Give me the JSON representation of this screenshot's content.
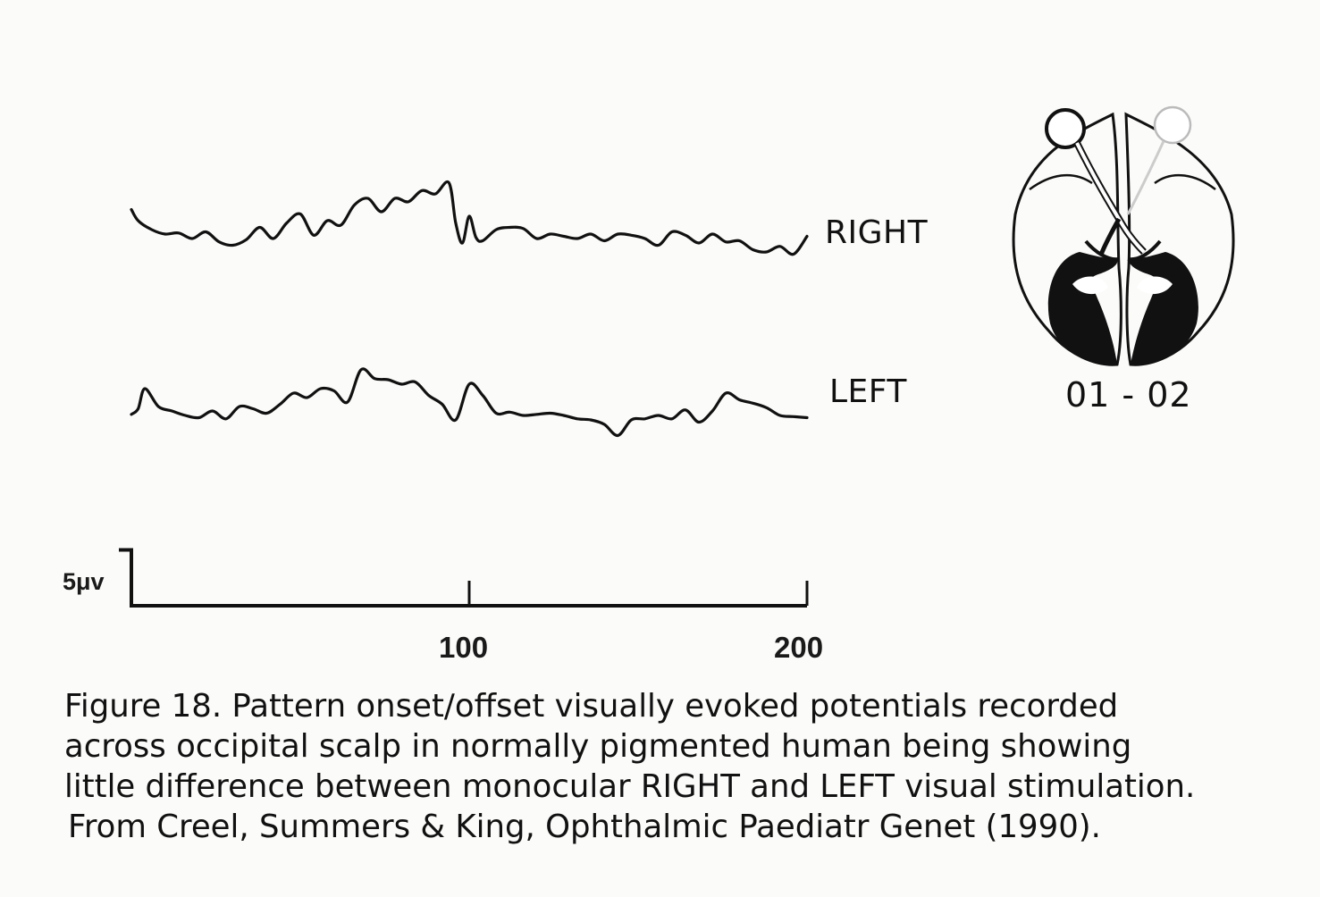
{
  "chart_data": {
    "type": "line",
    "xlabel": "",
    "ylabel": "",
    "x_ticks": [
      "100",
      "200"
    ],
    "xlim": [
      0,
      200
    ],
    "scale_bar": {
      "label": "5μv",
      "value": 5
    },
    "series": [
      {
        "name": "RIGHT",
        "x": [
          0,
          2,
          6,
          10,
          14,
          18,
          22,
          26,
          30,
          34,
          38,
          42,
          46,
          50,
          54,
          58,
          62,
          66,
          70,
          74,
          78,
          82,
          86,
          90,
          94,
          96,
          98,
          100,
          102,
          104,
          108,
          112,
          116,
          120,
          124,
          128,
          132,
          136,
          140,
          144,
          148,
          152,
          156,
          160,
          164,
          168,
          172,
          176,
          180,
          184,
          188,
          192,
          196,
          200
        ],
        "y": [
          3.8,
          2.8,
          2.0,
          1.6,
          1.7,
          1.2,
          1.8,
          0.9,
          0.6,
          1.1,
          2.2,
          1.2,
          2.6,
          3.4,
          1.5,
          2.8,
          2.4,
          4.2,
          4.8,
          3.6,
          4.8,
          4.5,
          5.5,
          5.2,
          6.2,
          2.6,
          0.8,
          3.2,
          1.3,
          1.0,
          2.0,
          2.2,
          2.1,
          1.2,
          1.6,
          1.4,
          1.2,
          1.6,
          1.0,
          1.6,
          1.5,
          1.2,
          0.6,
          1.8,
          1.5,
          0.8,
          1.6,
          0.9,
          1.0,
          0.2,
          0.0,
          0.5,
          -0.2,
          1.4
        ]
      },
      {
        "name": "LEFT",
        "x": [
          0,
          2,
          4,
          8,
          12,
          16,
          20,
          24,
          28,
          32,
          36,
          40,
          44,
          48,
          52,
          56,
          60,
          64,
          68,
          72,
          76,
          80,
          84,
          88,
          92,
          96,
          100,
          104,
          108,
          112,
          116,
          120,
          124,
          128,
          132,
          136,
          140,
          144,
          148,
          152,
          156,
          160,
          164,
          168,
          172,
          176,
          180,
          184,
          188,
          192,
          196,
          200
        ],
        "y": [
          0.5,
          1.0,
          2.8,
          1.2,
          0.8,
          0.4,
          0.2,
          0.8,
          0.1,
          1.2,
          1.0,
          0.6,
          1.4,
          2.4,
          2.0,
          2.8,
          2.6,
          1.6,
          4.5,
          3.7,
          3.6,
          3.2,
          3.4,
          2.2,
          1.4,
          0.0,
          3.2,
          2.2,
          0.6,
          0.7,
          0.4,
          0.5,
          0.6,
          0.4,
          0.1,
          0.0,
          -0.4,
          -1.4,
          0.0,
          0.1,
          0.4,
          0.1,
          0.9,
          -0.2,
          0.8,
          2.4,
          1.8,
          1.5,
          1.1,
          0.4,
          0.3,
          0.2
        ]
      }
    ]
  },
  "brain": {
    "caption": "01 - 02"
  },
  "caption": {
    "lines": [
      "Figure 18. Pattern onset/offset visually evoked potentials recorded",
      "across occipital scalp in normally pigmented human being showing",
      "little difference between monocular RIGHT and LEFT visual stimulation."
    ],
    "source": "From Creel, Summers & King, Ophthalmic Paediatr Genet (1990)."
  },
  "colors": {
    "ink": "#111111",
    "background": "#fbfbf9"
  }
}
